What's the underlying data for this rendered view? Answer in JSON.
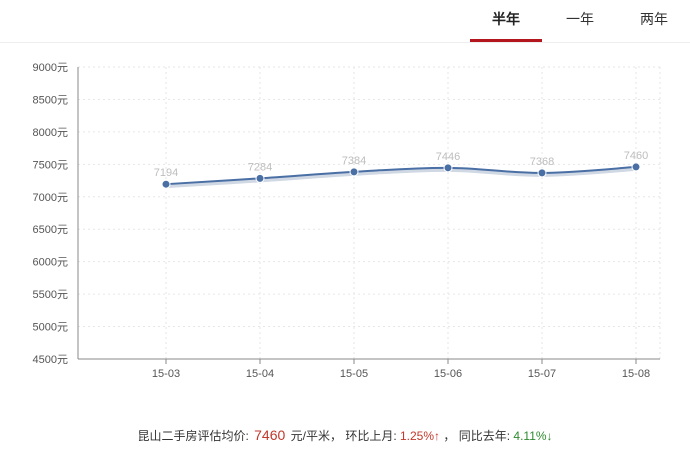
{
  "tabs": [
    {
      "label": "半年",
      "active": true
    },
    {
      "label": "一年",
      "active": false
    },
    {
      "label": "两年",
      "active": false
    }
  ],
  "chart_data": {
    "type": "line",
    "categories": [
      "15-03",
      "15-04",
      "15-05",
      "15-06",
      "15-07",
      "15-08"
    ],
    "values": [
      7194,
      7284,
      7384,
      7446,
      7368,
      7460
    ],
    "ylim": [
      4500,
      9000
    ],
    "y_ticks": [
      4500,
      5000,
      5500,
      6000,
      6500,
      7000,
      7500,
      8000,
      8500,
      9000
    ],
    "y_unit": "元",
    "grid": true,
    "data_labels": true,
    "line_color": "#4a6fa5"
  },
  "footer": {
    "prefix": "昆山二手房评估均价:",
    "price": "7460",
    "unit": "元/平米，",
    "mom_label": "环比上月:",
    "mom_value": "1.25%↑",
    "sep": "，",
    "yoy_label": "同比去年:",
    "yoy_value": "4.11%↓"
  }
}
